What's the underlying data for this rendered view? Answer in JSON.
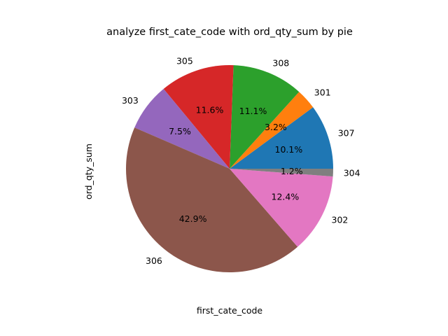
{
  "chart_data": {
    "type": "pie",
    "title": "analyze first_cate_code with ord_qty_sum by pie",
    "xlabel": "first_cate_code",
    "ylabel": "ord_qty_sum",
    "categories": [
      "307",
      "301",
      "308",
      "305",
      "303",
      "306",
      "302",
      "304"
    ],
    "values": [
      10.1,
      3.2,
      11.1,
      11.6,
      7.5,
      42.9,
      12.4,
      1.2
    ],
    "pct_labels": [
      "10.1%",
      "3.2%",
      "11.1%",
      "11.6%",
      "7.5%",
      "42.9%",
      "12.4%",
      "1.2%"
    ],
    "colors": [
      "#1f77b4",
      "#ff7f0e",
      "#2ca02c",
      "#d62728",
      "#9467bd",
      "#8c564b",
      "#e377c2",
      "#7f7f7f"
    ],
    "start_angle_deg": 0,
    "direction": "counterclockwise",
    "legend": "none"
  }
}
